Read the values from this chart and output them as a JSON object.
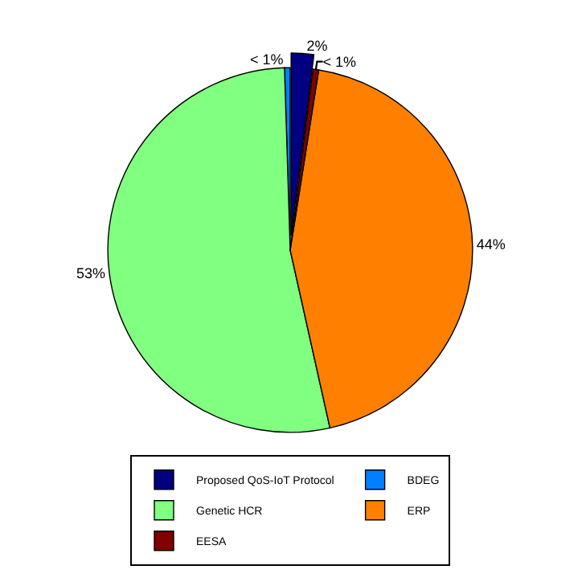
{
  "chart_data": {
    "type": "pie",
    "categories": [
      "Proposed QoS-IoT Protocol",
      "BDEG",
      "Genetic HCR",
      "ERP",
      "EESA"
    ],
    "values": [
      2,
      0.5,
      53,
      44,
      0.5
    ],
    "value_labels": [
      "2%",
      "< 1%",
      "53%",
      "44%",
      "< 1%"
    ],
    "colors": [
      "#000080",
      "#0080ff",
      "#80ff80",
      "#ff8000",
      "#800000"
    ],
    "legend": "bottom"
  }
}
